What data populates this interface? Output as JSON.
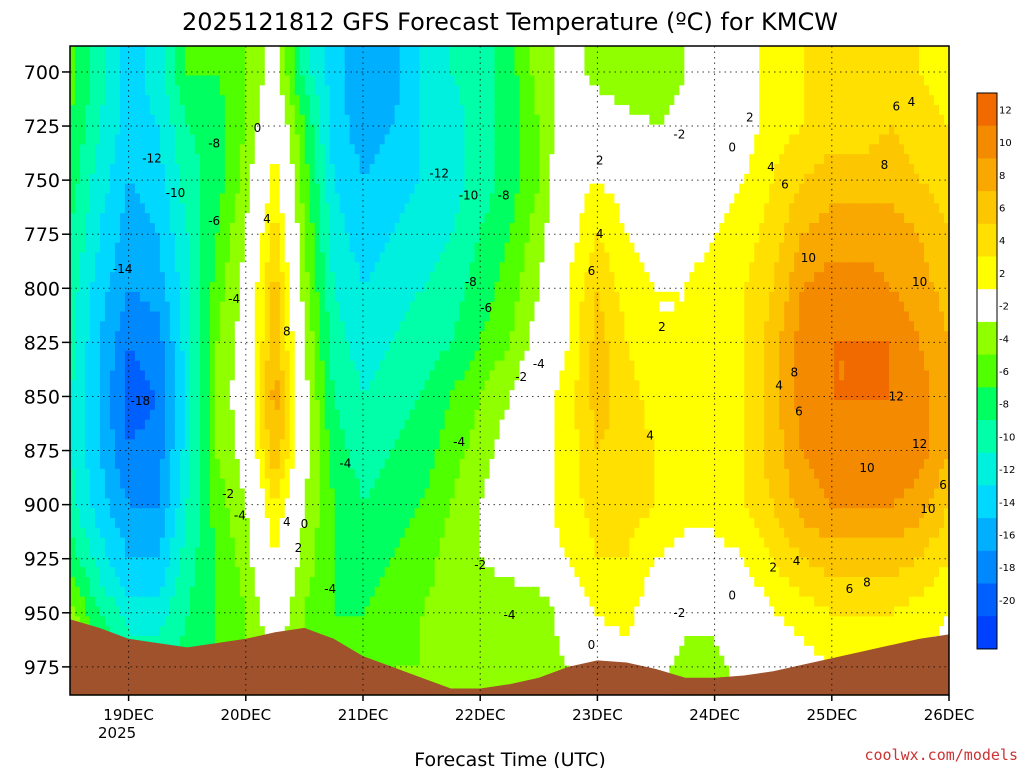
{
  "chart_data": {
    "type": "heatmap",
    "title": "2025121812 GFS Forecast Temperature (ºC) for KMCW",
    "xlabel": "Forecast Time (UTC)",
    "ylabel": "",
    "credit": "coolwx.com/models",
    "x_ticks": [
      "19DEC",
      "20DEC",
      "21DEC",
      "22DEC",
      "23DEC",
      "24DEC",
      "25DEC",
      "26DEC"
    ],
    "x_year_label": "2025",
    "x_range_days": [
      18.5,
      26.0
    ],
    "y_ticks": [
      700,
      725,
      750,
      775,
      800,
      825,
      850,
      875,
      900,
      925,
      950,
      975
    ],
    "y_range_hpa": [
      688,
      988
    ],
    "colorbar": {
      "labels": [
        12,
        10,
        8,
        6,
        4,
        2,
        -2,
        -4,
        -6,
        -8,
        -10,
        -12,
        -14,
        -16,
        -18,
        -20
      ],
      "colors": [
        "#f06a00",
        "#f48a00",
        "#f8a800",
        "#fcc600",
        "#ffe000",
        "#ffff00",
        "#ffffff",
        "#90ff00",
        "#50ff00",
        "#00ff60",
        "#00ffa8",
        "#00f0e0",
        "#00d8ff",
        "#00b0ff",
        "#0088ff",
        "#0060ff",
        "#0040ff"
      ]
    },
    "ground_color": "#a0522d",
    "zero_contour_color": "#b0207a",
    "temperature_grid": {
      "times_day": [
        18.5,
        18.75,
        19.0,
        19.25,
        19.5,
        19.75,
        20.0,
        20.25,
        20.5,
        20.75,
        21.0,
        21.25,
        21.5,
        21.75,
        22.0,
        22.25,
        22.5,
        22.75,
        23.0,
        23.25,
        23.5,
        23.75,
        24.0,
        24.25,
        24.5,
        24.75,
        25.0,
        25.25,
        25.5,
        25.75,
        26.0
      ],
      "levels_hpa": [
        700,
        725,
        750,
        775,
        800,
        825,
        850,
        875,
        900,
        925,
        950,
        975
      ],
      "values_c": [
        [
          -5,
          -9,
          -13,
          -11,
          -6,
          -6,
          -4,
          -1,
          -9,
          -13,
          -16,
          -15,
          -12,
          -10,
          -9,
          -7,
          -3,
          -1,
          -3,
          -4,
          -4,
          -2,
          0,
          1,
          3,
          4,
          4,
          4,
          5,
          4,
          3
        ],
        [
          -6,
          -10,
          -13,
          -12,
          -8,
          -7,
          -4,
          1,
          -6,
          -13,
          -15,
          -14,
          -12,
          -11,
          -9,
          -7,
          -4,
          0,
          0,
          -1,
          -2,
          -1,
          0,
          1,
          3,
          4,
          5,
          5,
          6,
          5,
          4
        ],
        [
          -7,
          -11,
          -14,
          -13,
          -9,
          -7,
          -3,
          3,
          -5,
          -12,
          -14,
          -13,
          -12,
          -11,
          -9,
          -7,
          -4,
          1,
          2,
          1,
          0,
          0,
          1,
          2,
          4,
          6,
          7,
          7,
          7,
          6,
          5
        ],
        [
          -8,
          -12,
          -15,
          -14,
          -10,
          -6,
          -2,
          5,
          -4,
          -11,
          -13,
          -12,
          -11,
          -10,
          -8,
          -6,
          -3,
          1,
          4,
          2,
          1,
          1,
          2,
          3,
          5,
          8,
          9,
          9,
          9,
          8,
          6
        ],
        [
          -9,
          -13,
          -16,
          -15,
          -11,
          -5,
          -1,
          7,
          -3,
          -10,
          -12,
          -11,
          -10,
          -9,
          -7,
          -5,
          -2,
          2,
          6,
          3,
          2,
          2,
          3,
          4,
          6,
          10,
          11,
          11,
          10,
          9,
          7
        ],
        [
          -9,
          -14,
          -18,
          -17,
          -11,
          -4,
          -1,
          8,
          -2,
          -9,
          -11,
          -10,
          -9,
          -8,
          -6,
          -4,
          -1,
          2,
          7,
          4,
          2,
          2,
          3,
          4,
          7,
          11,
          12,
          12,
          12,
          10,
          8
        ],
        [
          -10,
          -14,
          -19,
          -18,
          -11,
          -4,
          0,
          9,
          -1,
          -8,
          -10,
          -9,
          -8,
          -6,
          -4,
          -2,
          1,
          3,
          7,
          5,
          3,
          3,
          3,
          4,
          7,
          11,
          12,
          12,
          12,
          11,
          8
        ],
        [
          -10,
          -14,
          -18,
          -17,
          -11,
          -4,
          -1,
          8,
          -1,
          -7,
          -9,
          -8,
          -7,
          -5,
          -3,
          -1,
          1,
          3,
          6,
          5,
          4,
          3,
          3,
          4,
          7,
          10,
          11,
          11,
          12,
          11,
          8
        ],
        [
          -9,
          -13,
          -16,
          -16,
          -10,
          -5,
          -2,
          4,
          -2,
          -6,
          -8,
          -7,
          -6,
          -4,
          -2,
          0,
          1,
          3,
          5,
          5,
          4,
          3,
          3,
          4,
          6,
          9,
          10,
          10,
          10,
          9,
          6
        ],
        [
          -7,
          -11,
          -14,
          -14,
          -9,
          -6,
          -3,
          2,
          -3,
          -6,
          -7,
          -6,
          -5,
          -3,
          -2,
          -1,
          1,
          2,
          4,
          4,
          2,
          1,
          1,
          2,
          4,
          6,
          7,
          7,
          7,
          6,
          4
        ],
        [
          -3,
          -8,
          -11,
          -11,
          -8,
          -6,
          -4,
          0,
          -4,
          -6,
          -6,
          -5,
          -4,
          -3,
          -3,
          -4,
          -4,
          0,
          2,
          3,
          0,
          -1,
          -1,
          0,
          2,
          3,
          4,
          4,
          4,
          3,
          2
        ],
        [
          -1,
          -5,
          -8,
          -9,
          -7,
          -6,
          -4,
          -2,
          -4,
          -5,
          -5,
          -4,
          -4,
          -3,
          -3,
          -4,
          -4,
          -2,
          0,
          1,
          -1,
          -3,
          -3,
          -1,
          0,
          1,
          2,
          2,
          2,
          2,
          1
        ]
      ]
    },
    "ground_surface_hpa": {
      "times_day": [
        18.5,
        18.75,
        19.0,
        19.25,
        19.5,
        19.75,
        20.0,
        20.25,
        20.5,
        20.75,
        21.0,
        21.25,
        21.5,
        21.75,
        22.0,
        22.25,
        22.5,
        22.75,
        23.0,
        23.25,
        23.5,
        23.75,
        24.0,
        24.25,
        24.5,
        24.75,
        25.0,
        25.25,
        25.5,
        25.75,
        26.0
      ],
      "pressure": [
        953,
        957,
        962,
        964,
        966,
        964,
        962,
        959,
        957,
        962,
        970,
        975,
        980,
        985,
        985,
        983,
        980,
        975,
        972,
        973,
        976,
        980,
        980,
        979,
        977,
        974,
        971,
        968,
        965,
        962,
        960
      ]
    },
    "contour_labels": [
      {
        "text": "-12",
        "x": 19.2,
        "p": 740
      },
      {
        "text": "-10",
        "x": 19.4,
        "p": 756
      },
      {
        "text": "-14",
        "x": 18.95,
        "p": 791
      },
      {
        "text": "-18",
        "x": 19.1,
        "p": 852
      },
      {
        "text": "-8",
        "x": 19.73,
        "p": 733
      },
      {
        "text": "-6",
        "x": 19.73,
        "p": 769
      },
      {
        "text": "-4",
        "x": 19.9,
        "p": 805
      },
      {
        "text": "-2",
        "x": 19.85,
        "p": 895
      },
      {
        "text": "-4",
        "x": 19.95,
        "p": 905
      },
      {
        "text": "0",
        "x": 20.1,
        "p": 726
      },
      {
        "text": "4",
        "x": 20.18,
        "p": 768
      },
      {
        "text": "8",
        "x": 20.35,
        "p": 820
      },
      {
        "text": "4",
        "x": 20.35,
        "p": 908
      },
      {
        "text": "0",
        "x": 20.5,
        "p": 909
      },
      {
        "text": "2",
        "x": 20.45,
        "p": 920
      },
      {
        "text": "-4",
        "x": 20.85,
        "p": 881
      },
      {
        "text": "-4",
        "x": 20.72,
        "p": 939
      },
      {
        "text": "-12",
        "x": 21.65,
        "p": 747
      },
      {
        "text": "-10",
        "x": 21.9,
        "p": 757
      },
      {
        "text": "-8",
        "x": 22.2,
        "p": 757
      },
      {
        "text": "-8",
        "x": 21.92,
        "p": 797
      },
      {
        "text": "-6",
        "x": 22.05,
        "p": 809
      },
      {
        "text": "-4",
        "x": 22.5,
        "p": 835
      },
      {
        "text": "-2",
        "x": 22.35,
        "p": 841
      },
      {
        "text": "-4",
        "x": 21.82,
        "p": 871
      },
      {
        "text": "-2",
        "x": 22.0,
        "p": 928
      },
      {
        "text": "-4",
        "x": 22.25,
        "p": 951
      },
      {
        "text": "2",
        "x": 23.02,
        "p": 741
      },
      {
        "text": "4",
        "x": 23.02,
        "p": 775
      },
      {
        "text": "6",
        "x": 22.95,
        "p": 792
      },
      {
        "text": "2",
        "x": 23.55,
        "p": 818
      },
      {
        "text": "4",
        "x": 23.45,
        "p": 868
      },
      {
        "text": "0",
        "x": 22.95,
        "p": 965
      },
      {
        "text": "-2",
        "x": 23.7,
        "p": 950
      },
      {
        "text": "0",
        "x": 24.15,
        "p": 942
      },
      {
        "text": "-2",
        "x": 23.7,
        "p": 729
      },
      {
        "text": "0",
        "x": 24.15,
        "p": 735
      },
      {
        "text": "2",
        "x": 24.3,
        "p": 721
      },
      {
        "text": "4",
        "x": 24.48,
        "p": 744
      },
      {
        "text": "6",
        "x": 24.6,
        "p": 752
      },
      {
        "text": "10",
        "x": 24.8,
        "p": 786
      },
      {
        "text": "8",
        "x": 24.68,
        "p": 839
      },
      {
        "text": "4",
        "x": 24.55,
        "p": 845
      },
      {
        "text": "6",
        "x": 24.72,
        "p": 857
      },
      {
        "text": "8",
        "x": 25.45,
        "p": 743
      },
      {
        "text": "6",
        "x": 25.55,
        "p": 716
      },
      {
        "text": "4",
        "x": 25.68,
        "p": 714
      },
      {
        "text": "10",
        "x": 25.75,
        "p": 797
      },
      {
        "text": "12",
        "x": 25.55,
        "p": 850
      },
      {
        "text": "12",
        "x": 25.75,
        "p": 872
      },
      {
        "text": "10",
        "x": 25.3,
        "p": 883
      },
      {
        "text": "6",
        "x": 25.95,
        "p": 891
      },
      {
        "text": "10",
        "x": 25.82,
        "p": 902
      },
      {
        "text": "2",
        "x": 24.5,
        "p": 929
      },
      {
        "text": "4",
        "x": 24.7,
        "p": 926
      },
      {
        "text": "6",
        "x": 25.15,
        "p": 939
      },
      {
        "text": "8",
        "x": 25.3,
        "p": 936
      }
    ]
  }
}
